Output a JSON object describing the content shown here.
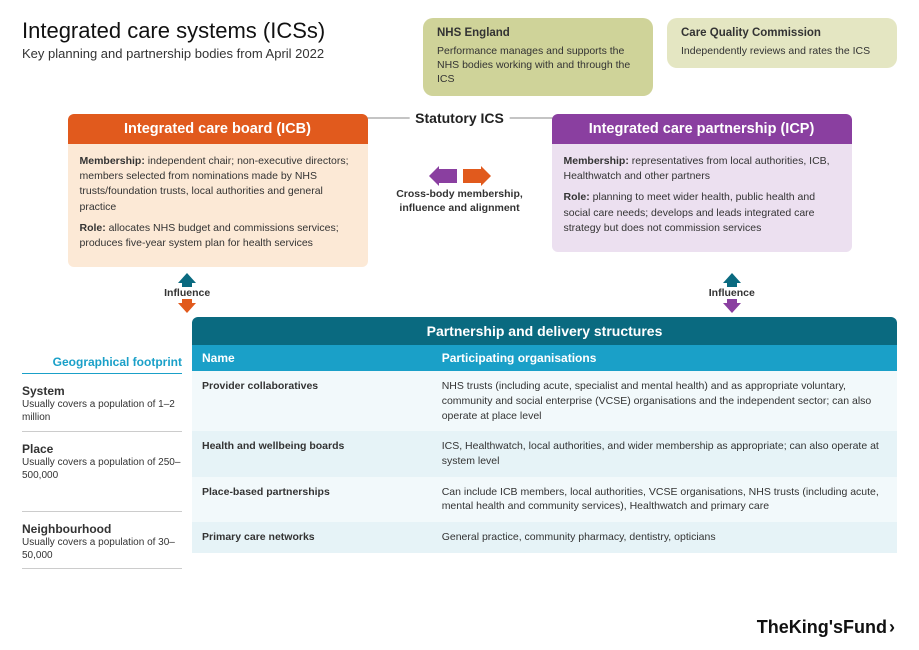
{
  "colors": {
    "nhs_box_bg": "#cfd399",
    "cqc_box_bg": "#e4e6c2",
    "icb_head": "#e15a1d",
    "icb_body": "#fce9d6",
    "icp_head": "#8a3fa0",
    "icp_body": "#ece0f0",
    "teal_dark": "#0a6a80",
    "teal_mid": "#1aa0c8",
    "row_a": "#f2f9fb",
    "row_b": "#e6f3f7",
    "arrow_up_icb": "#0a6a80",
    "arrow_down_icb": "#e15a1d",
    "arrow_up_icp": "#0a6a80",
    "arrow_down_icp": "#8a3fa0"
  },
  "header": {
    "title": "Integrated care systems (ICSs)",
    "subtitle": "Key planning and partnership bodies from April 2022"
  },
  "top_boxes": {
    "nhs": {
      "title": "NHS England",
      "body": "Performance manages and supports the NHS bodies working with and through the ICS"
    },
    "cqc": {
      "title": "Care Quality Commission",
      "body": "Independently reviews and rates the ICS"
    }
  },
  "statutory_label": "Statutory ICS",
  "icb": {
    "title": "Integrated care board (ICB)",
    "membership_label": "Membership:",
    "membership": "independent chair; non-executive directors; members selected from nominations made by NHS trusts/foundation trusts, local authorities and general practice",
    "role_label": "Role:",
    "role": "allocates NHS budget and commissions services; produces five-year system plan for health services"
  },
  "cross_body": "Cross-body membership, influence and alignment",
  "icp": {
    "title": "Integrated care partnership (ICP)",
    "membership_label": "Membership:",
    "membership": "representatives from local authorities, ICB, Healthwatch and other partners",
    "role_label": "Role:",
    "role": "planning to meet wider health, public health and social care needs; develops and leads integrated care strategy but does not commission services"
  },
  "influence_label": "Influence",
  "partnership": {
    "title": "Partnership and delivery structures",
    "col1": "Name",
    "col2": "Participating organisations",
    "geo_title": "Geographical footprint",
    "rows": [
      {
        "name": "Provider collaboratives",
        "orgs": "NHS trusts (including acute, specialist and mental health) and as appropriate voluntary, community and social enterprise (VCSE) organisations and the independent sector; can also operate at place level"
      },
      {
        "name": "Health and wellbeing boards",
        "orgs": "ICS, Healthwatch, local authorities, and wider membership as appropriate; can also operate at system level"
      },
      {
        "name": "Place-based partnerships",
        "orgs": "Can include ICB members, local authorities, VCSE organisations, NHS trusts (including acute, mental health and community services), Healthwatch and primary care"
      },
      {
        "name": "Primary care networks",
        "orgs": "General practice, community pharmacy, dentistry, opticians"
      }
    ],
    "geo": [
      {
        "name": "System",
        "desc": "Usually covers a population of 1–2 million",
        "row_span": 1,
        "height": 48
      },
      {
        "name": "Place",
        "desc": "Usually covers a population of 250–500,000",
        "row_span": 2,
        "height": 70
      },
      {
        "name": "Neighbourhood",
        "desc": "Usually covers a population of 30–50,000",
        "row_span": 1,
        "height": 34
      }
    ]
  },
  "footer": "TheKing'sFund"
}
